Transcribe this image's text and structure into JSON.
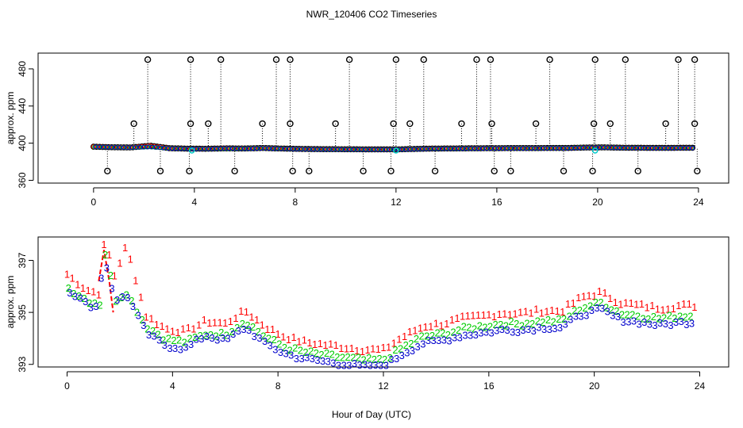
{
  "chart_data": {
    "title": "NWR_120406  CO2 Timeseries",
    "xlabel": "Hour of Day (UTC)",
    "panels": [
      {
        "name": "full-range",
        "type": "scatter",
        "ylabel": "approx. ppm",
        "xlim": [
          -2.2,
          25.2
        ],
        "ylim": [
          357,
          497
        ],
        "xticks": [
          0,
          4,
          8,
          12,
          16,
          20,
          24
        ],
        "yticks": [
          360,
          400,
          440,
          480
        ],
        "series": [
          {
            "name": "line 1",
            "color": "#ff0000",
            "values": [
              396.2,
              395.6,
              395.4,
              397.3,
              394.6,
              394.1,
              394.0,
              394.4,
              394.3,
              394.8,
              394.2,
              393.8,
              393.6,
              393.5,
              393.4,
              393.3,
              393.3,
              393.8,
              394.2,
              394.3,
              394.5,
              394.6,
              394.7,
              394.7,
              394.8,
              394.8,
              395.3,
              395.5,
              395.1,
              395.0,
              394.9,
              395.0
            ]
          },
          {
            "name": "line 2",
            "color": "#00cc00",
            "values": [
              396.0,
              395.5,
              395.3,
              395.8,
              394.5,
              394.0,
              393.9,
              394.2,
              394.2,
              394.7,
              394.1,
              393.7,
              393.5,
              393.4,
              393.3,
              393.2,
              393.2,
              393.7,
              394.1,
              394.2,
              394.4,
              394.5,
              394.6,
              394.6,
              394.7,
              394.7,
              395.2,
              395.4,
              395.0,
              394.9,
              394.8,
              394.9
            ]
          },
          {
            "name": "line 3",
            "color": "#0000cc",
            "values": [
              396.1,
              395.5,
              395.3,
              395.9,
              394.4,
              393.9,
              393.8,
              394.3,
              394.1,
              394.6,
              394.0,
              393.6,
              393.4,
              393.3,
              393.2,
              393.1,
              393.1,
              393.6,
              394.0,
              394.1,
              394.3,
              394.4,
              394.5,
              394.5,
              394.6,
              394.6,
              395.1,
              395.3,
              394.9,
              394.8,
              394.7,
              394.8
            ]
          }
        ],
        "outliers": {
          "high": [
            [
              2.15,
              490
            ],
            [
              3.85,
              490
            ],
            [
              5.05,
              490
            ],
            [
              7.25,
              490
            ],
            [
              7.8,
              490
            ],
            [
              10.15,
              490
            ],
            [
              12.0,
              490
            ],
            [
              13.1,
              490
            ],
            [
              15.2,
              490
            ],
            [
              15.75,
              490
            ],
            [
              18.1,
              490
            ],
            [
              19.9,
              490
            ],
            [
              21.1,
              490
            ],
            [
              23.2,
              490
            ],
            [
              23.85,
              490
            ]
          ],
          "mid": [
            [
              1.6,
              421
            ],
            [
              3.85,
              421
            ],
            [
              4.55,
              421
            ],
            [
              6.7,
              421
            ],
            [
              7.8,
              421
            ],
            [
              9.6,
              421
            ],
            [
              11.9,
              421
            ],
            [
              12.55,
              421
            ],
            [
              14.6,
              421
            ],
            [
              15.8,
              421
            ],
            [
              17.55,
              421
            ],
            [
              19.85,
              421
            ],
            [
              20.5,
              421
            ],
            [
              22.7,
              421
            ],
            [
              23.85,
              421
            ]
          ],
          "low": [
            [
              0.55,
              370
            ],
            [
              2.65,
              370
            ],
            [
              3.8,
              370
            ],
            [
              5.6,
              370
            ],
            [
              7.9,
              370
            ],
            [
              8.55,
              370
            ],
            [
              10.7,
              370
            ],
            [
              11.8,
              370
            ],
            [
              13.55,
              370
            ],
            [
              15.9,
              370
            ],
            [
              16.55,
              370
            ],
            [
              18.65,
              370
            ],
            [
              19.8,
              370
            ],
            [
              21.6,
              370
            ],
            [
              23.95,
              370
            ]
          ]
        },
        "cyan_points": [
          [
            3.9,
            392
          ],
          [
            12.0,
            392
          ],
          [
            19.9,
            392
          ]
        ]
      },
      {
        "name": "zoomed",
        "type": "scatter",
        "ylabel": "approx. ppm",
        "xlim": [
          -1.1,
          25.1
        ],
        "ylim": [
          392.9,
          397.9
        ],
        "xticks": [
          0,
          4,
          8,
          12,
          16,
          20,
          24
        ],
        "yticks": [
          393,
          395,
          397
        ],
        "series_symbols": [
          "1",
          "2",
          "3"
        ]
      }
    ]
  }
}
